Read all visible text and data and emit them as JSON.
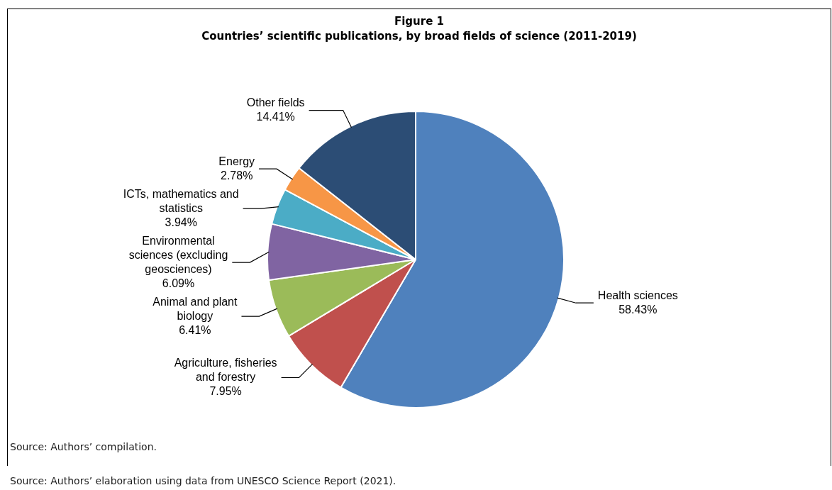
{
  "chart_data": {
    "type": "pie",
    "title": "Figure 1",
    "subtitle": "Countries’ scientific publications, by broad fields of science (2011-2019)",
    "categories": [
      "Health sciences",
      "Agriculture, fisheries and forestry",
      "Animal and plant biology",
      "Environmental sciences (excluding geosciences)",
      "ICTs, mathematics and statistics",
      "Energy",
      "Other fields"
    ],
    "values": [
      58.43,
      7.95,
      6.41,
      6.09,
      3.94,
      2.78,
      14.41
    ],
    "value_labels": [
      "58.43%",
      "7.95%",
      "6.41%",
      "6.09%",
      "3.94%",
      "2.78%",
      "14.41%"
    ],
    "colors": [
      "#4f81bd",
      "#c0504d",
      "#9bbb59",
      "#8064a2",
      "#4bacc6",
      "#f79646",
      "#2c4d75"
    ],
    "legend": false,
    "annotations": [
      "Source: Authors’ compilation.",
      "Source: Authors’ elaboration using data from UNESCO Science Report (2021)."
    ]
  }
}
